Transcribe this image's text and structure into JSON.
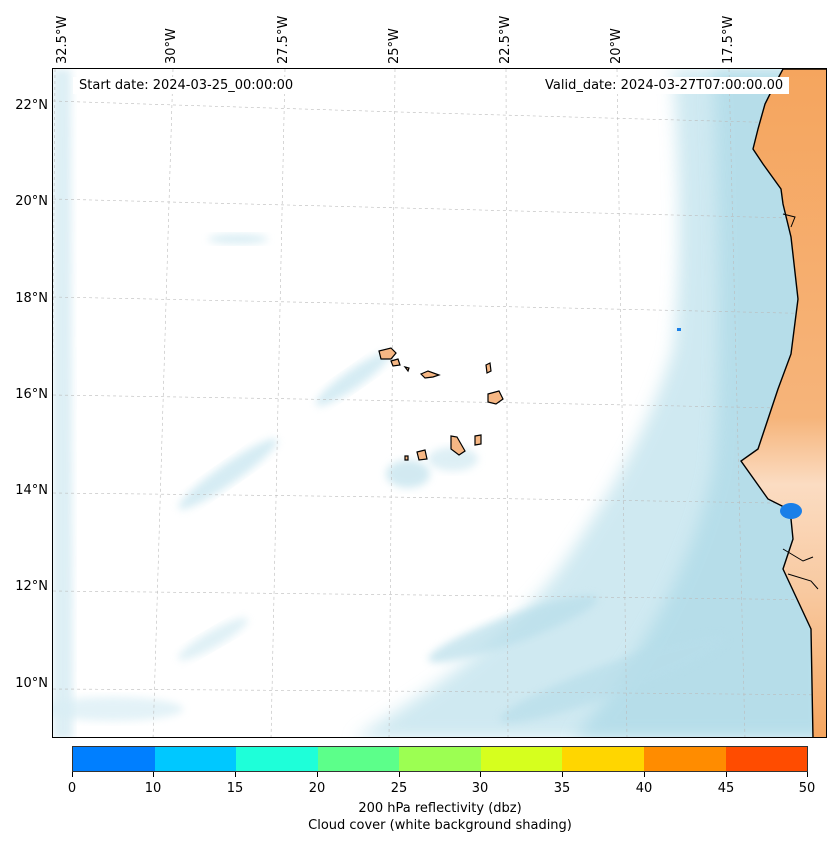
{
  "map": {
    "start_date": "Start date: 2024-03-25_00:00:00",
    "valid_date": "Valid_date: 2024-03-27T07:00:00.00",
    "longitude_labels": [
      "32.5°W",
      "30°W",
      "27.5°W",
      "25°W",
      "22.5°W",
      "20°W",
      "17.5°W"
    ],
    "latitude_labels": [
      "22°N",
      "20°N",
      "18°N",
      "16°N",
      "14°N",
      "12°N",
      "10°N"
    ],
    "colors": {
      "land": "#f5a55e",
      "land_light": "#f8cfa8",
      "cloud": "#a9d8e6",
      "reflectivity_blob": "#1a7fe8"
    }
  },
  "colorbar": {
    "colors": [
      "#007fff",
      "#00c8ff",
      "#1effd9",
      "#5cff8a",
      "#9cff52",
      "#d6ff1e",
      "#ffd600",
      "#ff8c00",
      "#ff4c00"
    ],
    "tick_labels": [
      "0",
      "10",
      "15",
      "20",
      "25",
      "30",
      "35",
      "40",
      "45",
      "50"
    ],
    "title": "200 hPa reflectivity (dbz)",
    "subtitle": "Cloud cover (white background shading)"
  }
}
